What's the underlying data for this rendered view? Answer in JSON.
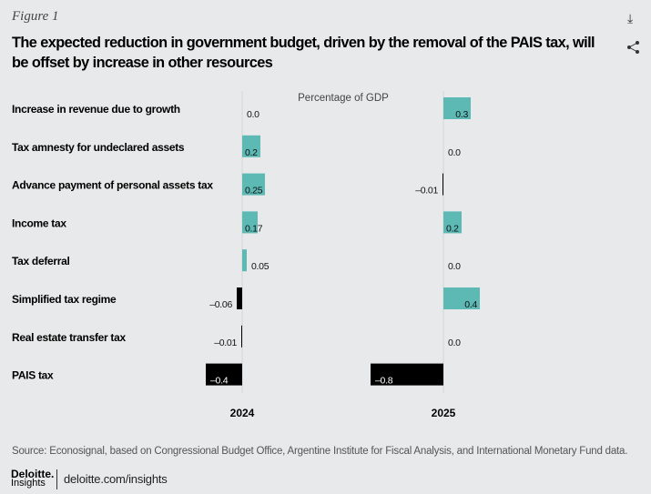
{
  "figure_label": "Figure 1",
  "icons": {
    "download": "download-icon",
    "share": "share-icon"
  },
  "colors": {
    "positive": "#5cb9b4",
    "negative": "#000000",
    "background": "#e8e9ea"
  },
  "chart_data": {
    "type": "bar",
    "title": "The expected reduction in government budget, driven by the removal of the PAIS tax, will be offset by increase in other resources",
    "subtitle": "Percentage of GDP",
    "categories": [
      "Increase in revenue due to growth",
      "Tax amnesty for undeclared assets",
      "Advance payment of personal assets tax",
      "Income tax",
      "Tax deferral",
      "Simplified tax regime",
      "Real estate transfer tax",
      "PAIS tax"
    ],
    "series": [
      {
        "name": "2024",
        "values": [
          0.0,
          0.2,
          0.25,
          0.17,
          0.05,
          -0.06,
          -0.01,
          -0.4
        ],
        "labels": [
          "0.0",
          "0.2",
          "0.25",
          "0.17",
          "0.05",
          "–0.06",
          "–0.01",
          "–0.4"
        ]
      },
      {
        "name": "2025",
        "values": [
          0.3,
          0.0,
          -0.01,
          0.2,
          0.0,
          0.4,
          0.0,
          -0.8
        ],
        "labels": [
          "0.3",
          "0.0",
          "–0.01",
          "0.2",
          "0.0",
          "0.4",
          "0.0",
          "–0.8"
        ]
      }
    ],
    "orientation": "horizontal",
    "grid": false,
    "legend": "none"
  },
  "source": "Source: Econosignal, based on Congressional Budget Office, Argentine Institute for Fiscal Analysis, and International Monetary Fund data.",
  "footer": {
    "brand": "Deloitte.",
    "brand_sub": "Insights",
    "link": "deloitte.com/insights"
  }
}
